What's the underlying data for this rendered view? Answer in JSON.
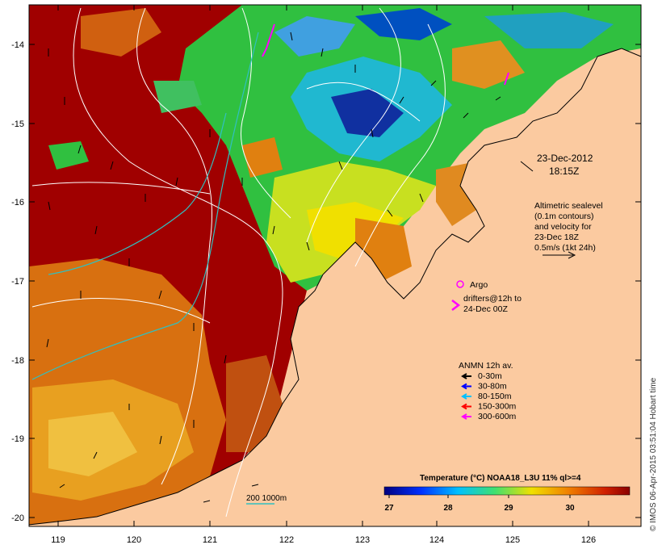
{
  "map": {
    "x_ticks": [
      "119",
      "120",
      "121",
      "122",
      "123",
      "124",
      "125",
      "126"
    ],
    "y_ticks": [
      "-14",
      "-15",
      "-16",
      "-17",
      "-18",
      "-19",
      "-20"
    ],
    "date_lines": [
      "23-Dec-2012",
      "18:15Z"
    ],
    "altimetry_lines": [
      "Altimetric sealevel",
      "(0.1m contours)",
      "and velocity for",
      "23-Dec 18Z",
      "0.5m/s (1kt 24h)"
    ],
    "argo_label": "Argo",
    "drifters_lines": [
      "drifters@12h to",
      "24-Dec 00Z"
    ],
    "mooring_title": "ANMN 12h av.",
    "mooring_depths": [
      {
        "label": "0-30m",
        "color": "#000000"
      },
      {
        "label": "30-80m",
        "color": "#0000ff"
      },
      {
        "label": "80-150m",
        "color": "#00c0ff"
      },
      {
        "label": "150-300m",
        "color": "#ff0000"
      },
      {
        "label": "300-600m",
        "color": "#ff00ff"
      }
    ],
    "isobath_label": "200  1000m",
    "colorbar_title": "Temperature (°C) NOAA18_L3U 11% ql>=4",
    "colorbar_ticks": [
      "27",
      "28",
      "29",
      "30"
    ],
    "credit": "© IMOS 06-Apr-2015 03:51:04 Hobart time"
  },
  "colors": {
    "land": "#fbcaa0",
    "warm": "#a00000",
    "orange": "#e08010",
    "yellow": "#f0d000",
    "green": "#30d030",
    "cyan": "#20c0e0",
    "blue": "#1020a0",
    "isobath": "#30c0c0"
  }
}
